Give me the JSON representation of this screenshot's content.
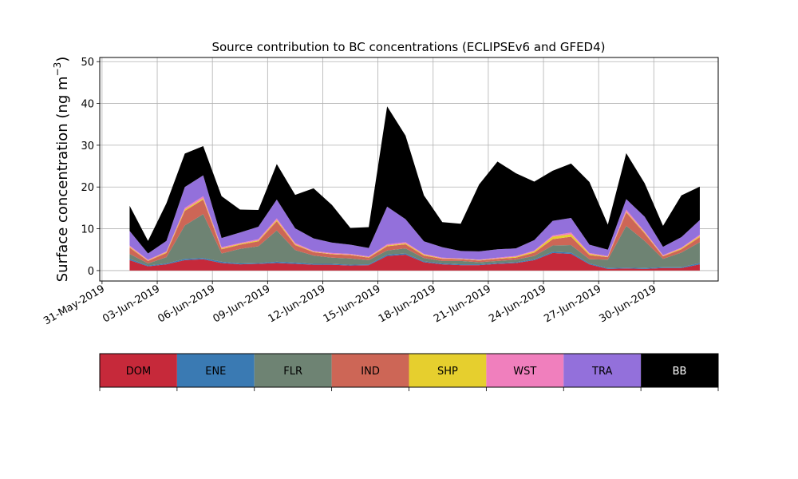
{
  "chart_data": {
    "type": "area",
    "stacked": true,
    "title": "Source contribution to BC concentrations (ECLIPSEv6 and GFED4)",
    "ylabel_main": "Surface concentration (ng m",
    "ylabel_sup": "−3",
    "ylabel_close": ")",
    "xlabel": "",
    "x_axis_type": "date",
    "xlim": [
      "2019-05-30T21:00",
      "2019-07-03T12:00"
    ],
    "ylim": [
      -2.5,
      51
    ],
    "grid": true,
    "x_ticks": [
      "31-May-2019",
      "03-Jun-2019",
      "06-Jun-2019",
      "09-Jun-2019",
      "12-Jun-2019",
      "15-Jun-2019",
      "18-Jun-2019",
      "21-Jun-2019",
      "24-Jun-2019",
      "27-Jun-2019",
      "30-Jun-2019"
    ],
    "y_ticks": [
      0,
      10,
      20,
      30,
      40,
      50
    ],
    "legend_placement": "colorbar below plot",
    "categories": [
      "DOM",
      "ENE",
      "FLR",
      "IND",
      "SHP",
      "WST",
      "TRA",
      "BB"
    ],
    "colors": [
      "#c6293a",
      "#3a7ab3",
      "#6e8373",
      "#cd6656",
      "#e6cf2e",
      "#f07fbd",
      "#9370db",
      "#000000"
    ],
    "legend_text_colors": [
      "#000000",
      "#000000",
      "#000000",
      "#000000",
      "#000000",
      "#000000",
      "#000000",
      "#ffffff"
    ],
    "x": [
      "2019-06-01T12:00",
      "2019-06-02T12:00",
      "2019-06-03T12:00",
      "2019-06-04T12:00",
      "2019-06-05T12:00",
      "2019-06-06T12:00",
      "2019-06-07T12:00",
      "2019-06-08T12:00",
      "2019-06-09T12:00",
      "2019-06-10T12:00",
      "2019-06-11T12:00",
      "2019-06-12T12:00",
      "2019-06-13T12:00",
      "2019-06-14T12:00",
      "2019-06-15T12:00",
      "2019-06-16T12:00",
      "2019-06-17T12:00",
      "2019-06-18T12:00",
      "2019-06-19T12:00",
      "2019-06-20T12:00",
      "2019-06-21T12:00",
      "2019-06-22T12:00",
      "2019-06-23T12:00",
      "2019-06-24T12:00",
      "2019-06-25T12:00",
      "2019-06-26T12:00",
      "2019-06-27T12:00",
      "2019-06-28T12:00",
      "2019-06-29T12:00",
      "2019-06-30T12:00",
      "2019-07-01T12:00",
      "2019-07-02T12:00"
    ],
    "series": [
      {
        "name": "DOM",
        "values": [
          2.5,
          1.0,
          1.5,
          2.5,
          2.7,
          1.8,
          1.5,
          1.6,
          1.8,
          1.6,
          1.4,
          1.4,
          1.2,
          1.3,
          3.5,
          3.8,
          2.0,
          1.5,
          1.3,
          1.3,
          1.6,
          1.8,
          2.5,
          4.2,
          4.0,
          1.5,
          0.4,
          0.5,
          0.4,
          0.6,
          0.6,
          1.5
        ]
      },
      {
        "name": "ENE",
        "values": [
          0.3,
          0.2,
          0.2,
          0.3,
          0.3,
          0.3,
          0.2,
          0.2,
          0.3,
          0.3,
          0.2,
          0.2,
          0.2,
          0.2,
          0.3,
          0.3,
          0.2,
          0.2,
          0.2,
          0.2,
          0.2,
          0.2,
          0.2,
          0.3,
          0.3,
          0.2,
          0.2,
          0.2,
          0.2,
          0.2,
          0.2,
          0.3
        ]
      },
      {
        "name": "FLR",
        "values": [
          1.2,
          0.5,
          1.5,
          8.0,
          10.5,
          2.0,
          3.5,
          4.0,
          7.5,
          3.0,
          2.0,
          1.5,
          1.5,
          1.0,
          1.0,
          1.2,
          0.8,
          0.6,
          0.8,
          0.5,
          0.5,
          0.6,
          0.8,
          1.5,
          1.8,
          1.0,
          2.0,
          10.0,
          6.5,
          2.0,
          3.5,
          5.0
        ]
      },
      {
        "name": "IND",
        "values": [
          1.5,
          0.6,
          1.0,
          3.5,
          3.5,
          1.0,
          1.0,
          1.2,
          2.2,
          1.2,
          0.8,
          0.8,
          0.8,
          0.6,
          1.0,
          1.0,
          0.6,
          0.5,
          0.4,
          0.4,
          0.5,
          0.5,
          0.8,
          1.5,
          2.0,
          1.0,
          0.6,
          3.2,
          1.8,
          0.6,
          0.8,
          1.2
        ]
      },
      {
        "name": "SHP",
        "values": [
          0.2,
          0.1,
          0.2,
          0.3,
          0.3,
          0.2,
          0.2,
          0.2,
          0.3,
          0.2,
          0.1,
          0.1,
          0.1,
          0.1,
          0.2,
          0.2,
          0.2,
          0.1,
          0.1,
          0.1,
          0.1,
          0.2,
          0.3,
          0.6,
          0.6,
          0.3,
          0.1,
          0.2,
          0.2,
          0.1,
          0.2,
          0.3
        ]
      },
      {
        "name": "WST",
        "values": [
          0.3,
          0.2,
          0.2,
          0.4,
          0.5,
          0.3,
          0.2,
          0.3,
          0.4,
          0.3,
          0.2,
          0.2,
          0.2,
          0.2,
          0.3,
          0.3,
          0.2,
          0.2,
          0.1,
          0.1,
          0.2,
          0.2,
          0.2,
          0.3,
          0.4,
          0.2,
          0.2,
          0.5,
          0.3,
          0.2,
          0.2,
          0.3
        ]
      },
      {
        "name": "TRA",
        "values": [
          3.5,
          1.5,
          2.5,
          5.0,
          5.0,
          2.2,
          2.5,
          3.0,
          4.5,
          3.5,
          3.0,
          2.5,
          2.2,
          2.0,
          9.0,
          5.5,
          3.0,
          2.5,
          1.8,
          2.0,
          2.0,
          1.8,
          2.5,
          3.5,
          3.5,
          2.0,
          1.5,
          2.5,
          3.5,
          2.0,
          2.5,
          3.5
        ]
      },
      {
        "name": "BB",
        "values": [
          6.0,
          3.0,
          9.0,
          8.0,
          7.0,
          10.0,
          5.5,
          4.0,
          8.5,
          8.0,
          12.0,
          9.0,
          4.0,
          5.0,
          24.0,
          20.0,
          11.0,
          6.0,
          6.5,
          16.0,
          21.0,
          18.0,
          14.0,
          12.0,
          13.0,
          15.0,
          6.0,
          11.0,
          8.0,
          5.0,
          10.0,
          8.0
        ]
      }
    ]
  }
}
